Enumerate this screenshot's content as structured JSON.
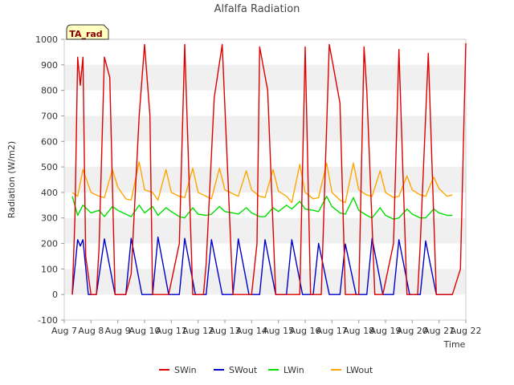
{
  "chart_data": {
    "type": "line",
    "title": "Alfalfa Radiation",
    "xlabel": "Time",
    "ylabel": "Radiation (W/m2)",
    "badge": "TA_rad",
    "ylim": [
      -100,
      1000
    ],
    "yticks": [
      -100,
      0,
      100,
      200,
      300,
      400,
      500,
      600,
      700,
      800,
      900,
      1000
    ],
    "xlim": [
      7,
      22
    ],
    "xticks": [
      7,
      8,
      9,
      10,
      11,
      12,
      13,
      14,
      15,
      16,
      17,
      18,
      19,
      20,
      21,
      22
    ],
    "xtick_labels": [
      "Aug 7",
      "Aug 8",
      "Aug 9",
      "Aug 10",
      "Aug 11",
      "Aug 12",
      "Aug 13",
      "Aug 14",
      "Aug 15",
      "Aug 16",
      "Aug 17",
      "Aug 18",
      "Aug 19",
      "Aug 20",
      "Aug 21",
      "Aug 22"
    ],
    "grid_bands": true,
    "legend_position": "bottom",
    "series": [
      {
        "name": "SWin",
        "color": "#dd0000",
        "x": [
          7.3,
          7.4,
          7.5,
          7.6,
          7.7,
          7.8,
          8.0,
          8.2,
          8.3,
          8.5,
          8.7,
          8.9,
          9.3,
          9.5,
          9.8,
          10.0,
          10.2,
          10.3,
          10.6,
          10.9,
          11.3,
          11.5,
          11.8,
          12.0,
          12.2,
          12.3,
          12.6,
          12.9,
          13.3,
          13.5,
          13.8,
          14.0,
          14.2,
          14.3,
          14.6,
          14.9,
          15.3,
          15.5,
          15.8,
          16.0,
          16.2,
          16.3,
          16.6,
          16.9,
          17.3,
          17.5,
          17.8,
          18.0,
          18.2,
          18.3,
          18.6,
          18.9,
          19.3,
          19.5,
          19.8,
          20.0,
          20.2,
          20.3,
          20.6,
          20.9,
          21.3,
          21.5,
          21.8,
          22.0
        ],
        "y": [
          0,
          300,
          930,
          820,
          930,
          150,
          0,
          0,
          180,
          930,
          850,
          0,
          0,
          80,
          700,
          980,
          700,
          0,
          0,
          0,
          200,
          980,
          0,
          0,
          0,
          120,
          770,
          980,
          0,
          0,
          0,
          0,
          200,
          970,
          800,
          0,
          0,
          0,
          0,
          970,
          0,
          0,
          0,
          980,
          750,
          0,
          0,
          0,
          970,
          800,
          0,
          0,
          200,
          960,
          0,
          0,
          0,
          200,
          945,
          0,
          0,
          0,
          100,
          985
        ]
      },
      {
        "name": "SWout",
        "color": "#0000cc",
        "x": [
          7.3,
          7.5,
          7.6,
          7.7,
          7.9,
          8.2,
          8.5,
          8.9,
          9.3,
          9.5,
          9.9,
          10.3,
          10.5,
          10.9,
          11.3,
          11.5,
          11.9,
          12.3,
          12.5,
          12.9,
          13.3,
          13.5,
          13.9,
          14.3,
          14.5,
          14.9,
          15.3,
          15.5,
          15.9,
          16.3,
          16.5,
          16.9,
          17.3,
          17.5,
          17.9,
          18.3,
          18.5,
          18.9,
          19.3,
          19.5,
          19.9,
          20.3,
          20.5,
          20.9,
          21.3,
          21.5
        ],
        "y": [
          0,
          215,
          190,
          215,
          0,
          0,
          218,
          0,
          0,
          220,
          0,
          0,
          225,
          0,
          0,
          220,
          0,
          0,
          215,
          0,
          0,
          218,
          0,
          0,
          215,
          0,
          0,
          215,
          0,
          0,
          200,
          0,
          0,
          198,
          0,
          0,
          220,
          0,
          0,
          215,
          0,
          0,
          210,
          0,
          0,
          0
        ]
      },
      {
        "name": "LWin",
        "color": "#00dd00",
        "x": [
          7.3,
          7.5,
          7.7,
          8.0,
          8.3,
          8.5,
          8.8,
          9.0,
          9.3,
          9.5,
          9.8,
          10.0,
          10.3,
          10.5,
          10.8,
          11.0,
          11.3,
          11.5,
          11.8,
          12.0,
          12.3,
          12.5,
          12.8,
          13.0,
          13.3,
          13.5,
          13.8,
          14.0,
          14.3,
          14.5,
          14.8,
          15.0,
          15.3,
          15.5,
          15.8,
          16.0,
          16.3,
          16.5,
          16.8,
          17.0,
          17.3,
          17.5,
          17.8,
          18.0,
          18.3,
          18.5,
          18.8,
          19.0,
          19.3,
          19.5,
          19.8,
          20.0,
          20.3,
          20.5,
          20.8,
          21.0,
          21.3,
          21.5
        ],
        "y": [
          385,
          310,
          350,
          320,
          330,
          305,
          345,
          330,
          315,
          305,
          350,
          320,
          345,
          310,
          340,
          325,
          305,
          300,
          340,
          315,
          310,
          315,
          345,
          325,
          320,
          315,
          340,
          320,
          305,
          305,
          340,
          325,
          350,
          335,
          365,
          335,
          330,
          325,
          385,
          345,
          320,
          315,
          380,
          330,
          310,
          300,
          340,
          310,
          295,
          300,
          335,
          315,
          300,
          300,
          335,
          320,
          310,
          310
        ]
      },
      {
        "name": "LWout",
        "color": "#ffa500",
        "x": [
          7.3,
          7.5,
          7.7,
          8.0,
          8.3,
          8.5,
          8.8,
          9.0,
          9.3,
          9.5,
          9.8,
          10.0,
          10.3,
          10.5,
          10.8,
          11.0,
          11.3,
          11.5,
          11.8,
          12.0,
          12.3,
          12.5,
          12.8,
          13.0,
          13.3,
          13.5,
          13.8,
          14.0,
          14.3,
          14.5,
          14.8,
          15.0,
          15.3,
          15.5,
          15.8,
          16.0,
          16.3,
          16.5,
          16.8,
          17.0,
          17.3,
          17.5,
          17.8,
          18.0,
          18.3,
          18.5,
          18.8,
          19.0,
          19.3,
          19.5,
          19.8,
          20.0,
          20.3,
          20.5,
          20.8,
          21.0,
          21.3,
          21.5
        ],
        "y": [
          400,
          385,
          490,
          400,
          385,
          380,
          490,
          420,
          375,
          370,
          520,
          410,
          400,
          370,
          490,
          400,
          385,
          380,
          495,
          400,
          385,
          375,
          495,
          410,
          395,
          385,
          485,
          410,
          385,
          380,
          490,
          405,
          385,
          360,
          510,
          400,
          375,
          380,
          515,
          400,
          370,
          360,
          515,
          410,
          390,
          385,
          485,
          400,
          380,
          385,
          465,
          410,
          390,
          385,
          460,
          415,
          385,
          390
        ]
      }
    ]
  }
}
